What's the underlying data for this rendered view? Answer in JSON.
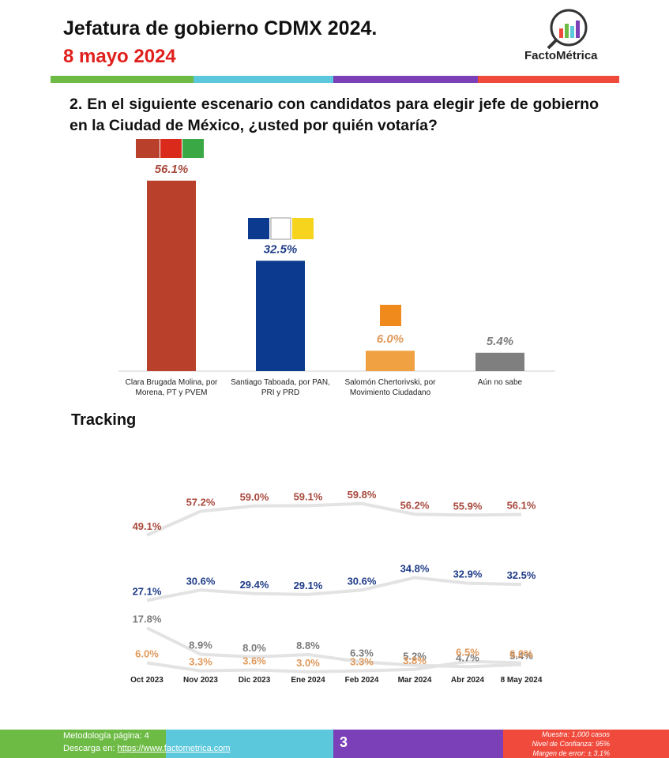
{
  "header": {
    "title": "Jefatura de gobierno CDMX 2024.",
    "date": "8 mayo 2024",
    "brand": "FactoMétrica"
  },
  "question": "2. En el siguiente escenario con candidatos para elegir jefe de gobierno en la Ciudad de México, ¿usted por quién votaría?",
  "tracking_title": "Tracking",
  "chart_data": [
    {
      "type": "bar",
      "categories": [
        "Clara Brugada Molina, por Morena, PT y PVEM",
        "Santiago Taboada, por PAN, PRI y PRD",
        "Salomón Chertorivski, por Movimiento Ciudadano",
        "Aún no sabe"
      ],
      "values": [
        56.1,
        32.5,
        6.0,
        5.4
      ],
      "value_labels": [
        "56.1%",
        "32.5%",
        "6.0%",
        "5.4%"
      ],
      "colors": [
        "#b9412b",
        "#0c3a8e",
        "#f0a243",
        "#7f7f7f"
      ]
    },
    {
      "type": "line",
      "x": [
        "Oct 2023",
        "Nov 2023",
        "Dic 2023",
        "Ene 2024",
        "Feb 2024",
        "Mar 2024",
        "Abr 2024",
        "8 May 2024"
      ],
      "line_color": "#e3e3e3",
      "series": [
        {
          "color": "#a8493d",
          "values": [
            49.1,
            57.2,
            59.0,
            59.1,
            59.8,
            56.2,
            55.9,
            56.1
          ],
          "value_labels": [
            "49.1%",
            "57.2%",
            "59.0%",
            "59.1%",
            "59.8%",
            "56.2%",
            "55.9%",
            "56.1%"
          ]
        },
        {
          "color": "#1f3c88",
          "values": [
            27.1,
            30.6,
            29.4,
            29.1,
            30.6,
            34.8,
            32.9,
            32.5
          ],
          "value_labels": [
            "27.1%",
            "30.6%",
            "29.4%",
            "29.1%",
            "30.6%",
            "34.8%",
            "32.9%",
            "32.5%"
          ]
        },
        {
          "color": "#7b7b7b",
          "values": [
            17.8,
            8.9,
            8.0,
            8.8,
            6.3,
            5.2,
            4.7,
            5.4
          ],
          "value_labels": [
            "17.8%",
            "8.9%",
            "8.0%",
            "8.8%",
            "6.3%",
            "5.2%",
            "4.7%",
            "5.4%"
          ]
        },
        {
          "color": "#e0995a",
          "values": [
            6.0,
            3.3,
            3.6,
            3.0,
            3.3,
            3.8,
            6.5,
            6.0
          ],
          "value_labels": [
            "6.0%",
            "3.3%",
            "3.6%",
            "3.0%",
            "3.3%",
            "3.8%",
            "6.5%",
            "6.0%"
          ]
        }
      ]
    }
  ],
  "footer": {
    "methodology": "Metodología página: 4",
    "download": "Descarga en:",
    "url": "https://www.factometrica.com",
    "page": "3",
    "sample": "Muestra: 1,000 casos",
    "confidence": "Nivel de Confianza: 95%",
    "error": "Margen de error: ± 3.1%"
  }
}
